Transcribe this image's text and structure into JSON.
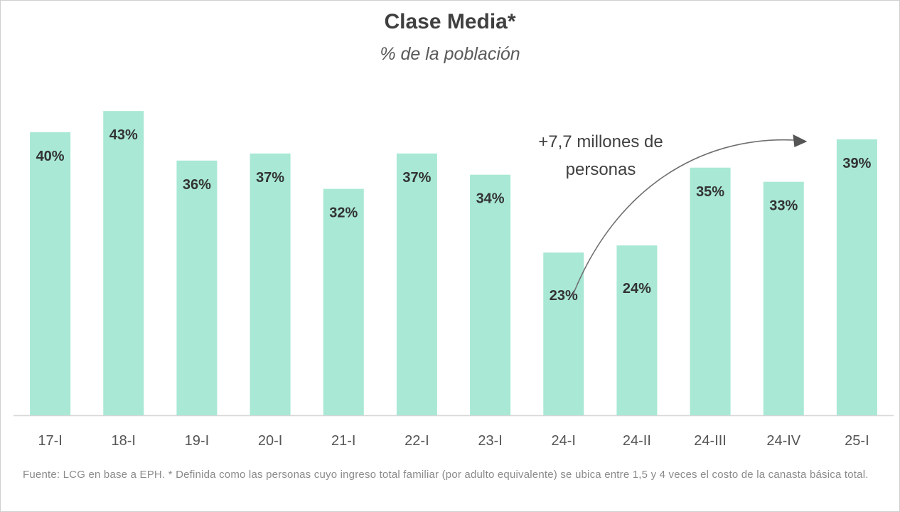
{
  "chart_data": {
    "type": "bar",
    "title": "Clase Media*",
    "subtitle": "% de la población",
    "categories": [
      "17-I",
      "18-I",
      "19-I",
      "20-I",
      "21-I",
      "22-I",
      "23-I",
      "24-I",
      "24-II",
      "24-III",
      "24-IV",
      "25-I"
    ],
    "values": [
      40,
      43,
      36,
      37,
      32,
      37,
      34,
      23,
      24,
      35,
      33,
      39
    ],
    "value_labels": [
      "40%",
      "43%",
      "36%",
      "37%",
      "32%",
      "37%",
      "34%",
      "23%",
      "24%",
      "35%",
      "33%",
      "39%"
    ],
    "unit": "%",
    "xlabel": "",
    "ylabel": "",
    "ylim": [
      0,
      45
    ],
    "grid": false,
    "bar_color": "#a8e8d4",
    "annotation": {
      "lines": [
        "+7,7 millones de",
        "personas"
      ],
      "from_category": "24-I",
      "to_category": "25-I"
    }
  },
  "footnote": "Fuente: LCG en base a EPH. * Definida como las personas cuyo ingreso total familiar (por adulto equivalente) se ubica entre 1,5 y 4 veces el costo de la canasta básica total."
}
